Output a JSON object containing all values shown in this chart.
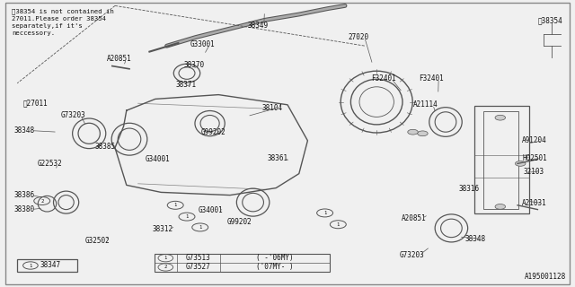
{
  "bg_color": "#f0f0f0",
  "border_color": "#888888",
  "line_color": "#555555",
  "text_color": "#111111",
  "diagram_id": "A195001128",
  "note_text": "※38354 is not contained in\n27011.Please order 38354\nseparately,if it's\nneccessory.",
  "fs": 5.5,
  "legend_items": [
    {
      "num": "1",
      "code": "G73513",
      "note": "( -'06MY)"
    },
    {
      "num": "2",
      "code": "G73527",
      "note": "('07MY- )"
    }
  ]
}
